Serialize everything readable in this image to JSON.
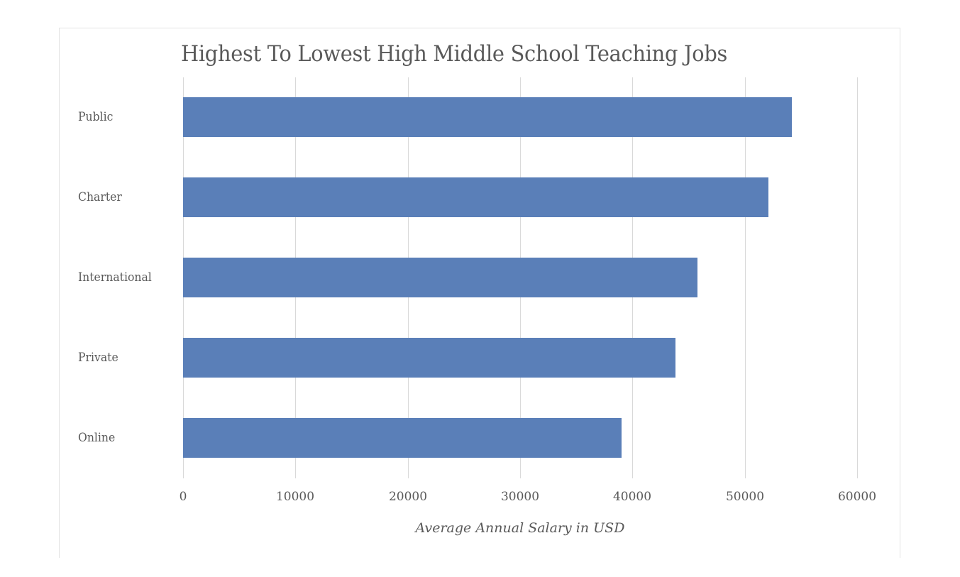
{
  "chart_data": {
    "type": "bar",
    "orientation": "horizontal",
    "title": "Highest To Lowest High Middle School Teaching Jobs",
    "categories": [
      "Public",
      "Charter",
      "International",
      "Private",
      "Online"
    ],
    "values": [
      54200,
      52100,
      45800,
      43800,
      39000
    ],
    "xlabel": "Average Annual Salary in USD",
    "ylabel": "",
    "xlim": [
      0,
      60000
    ],
    "xticks": [
      "0",
      "10000",
      "20000",
      "30000",
      "40000",
      "50000",
      "60000"
    ],
    "grid": "vertical",
    "legend": "none",
    "bar_color": "#5a7fb8"
  },
  "ui": {
    "title": "Highest To Lowest High Middle School Teaching Jobs",
    "xlabel": "Average Annual Salary in USD",
    "ticks": [
      "0",
      "10000",
      "20000",
      "30000",
      "40000",
      "50000",
      "60000"
    ],
    "categories": [
      "Public",
      "Charter",
      "International",
      "Private",
      "Online"
    ]
  }
}
